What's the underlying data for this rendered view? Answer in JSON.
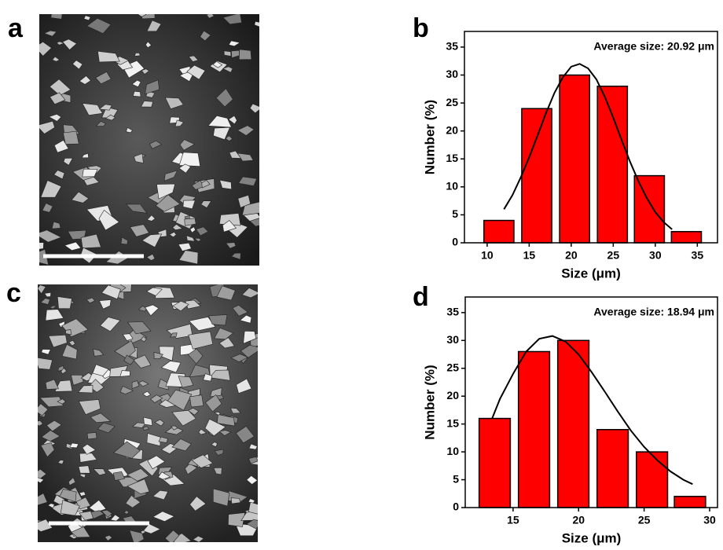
{
  "images": [
    {
      "label": "a"
    },
    {
      "label": "c"
    }
  ],
  "chart_data": [
    {
      "type": "bar",
      "panel_label": "b",
      "annotation": "Average size: 20.92 μm",
      "x_label": "Size (μm)",
      "y_label": "Number (%)",
      "color": "#ff0000",
      "x": [
        11.4,
        15.9,
        20.4,
        24.9,
        29.3,
        33.7
      ],
      "values": [
        4,
        24,
        30,
        28,
        12,
        2
      ],
      "xlim": [
        7.3,
        37.4
      ],
      "xticks": [
        10,
        15,
        20,
        25,
        30,
        35
      ],
      "ylim": [
        0,
        37.8
      ],
      "yticks": [
        0,
        5,
        10,
        15,
        20,
        25,
        30,
        35
      ],
      "fit": {
        "x": [
          12,
          13,
          14,
          15,
          16,
          17,
          18,
          19,
          20,
          21,
          22,
          23,
          24,
          25,
          26,
          27,
          28,
          29,
          30,
          31,
          32
        ],
        "values": [
          6.0,
          8.5,
          11.7,
          15.3,
          19.2,
          23.2,
          26.8,
          29.6,
          31.5,
          32,
          31.2,
          29.2,
          26.1,
          22.4,
          18.4,
          14.5,
          11.0,
          8.0,
          5.5,
          3.7,
          2.4
        ]
      }
    },
    {
      "type": "bar",
      "panel_label": "d",
      "annotation": "Average size: 18.94 μm",
      "x_label": "Size (μm)",
      "y_label": "Number (%)",
      "color": "#ff0000",
      "x": [
        13.6,
        16.6,
        19.6,
        22.6,
        25.6,
        28.5
      ],
      "values": [
        16,
        28,
        30,
        14,
        10,
        2
      ],
      "xlim": [
        11.35,
        30.6
      ],
      "xticks": [
        15,
        20,
        25,
        30
      ],
      "ylim": [
        0,
        37.8
      ],
      "yticks": [
        0,
        5,
        10,
        15,
        20,
        25,
        30,
        35
      ],
      "fit": {
        "x": [
          13.4,
          14,
          15,
          16,
          17,
          18,
          19,
          20,
          21,
          22,
          23,
          24,
          25,
          26,
          27,
          28,
          28.7
        ],
        "values": [
          16,
          19.5,
          24,
          28,
          30.3,
          30.8,
          29.8,
          27.5,
          24.3,
          20.8,
          17.2,
          13.8,
          10.9,
          8.5,
          6.5,
          5,
          4.2
        ]
      }
    }
  ]
}
